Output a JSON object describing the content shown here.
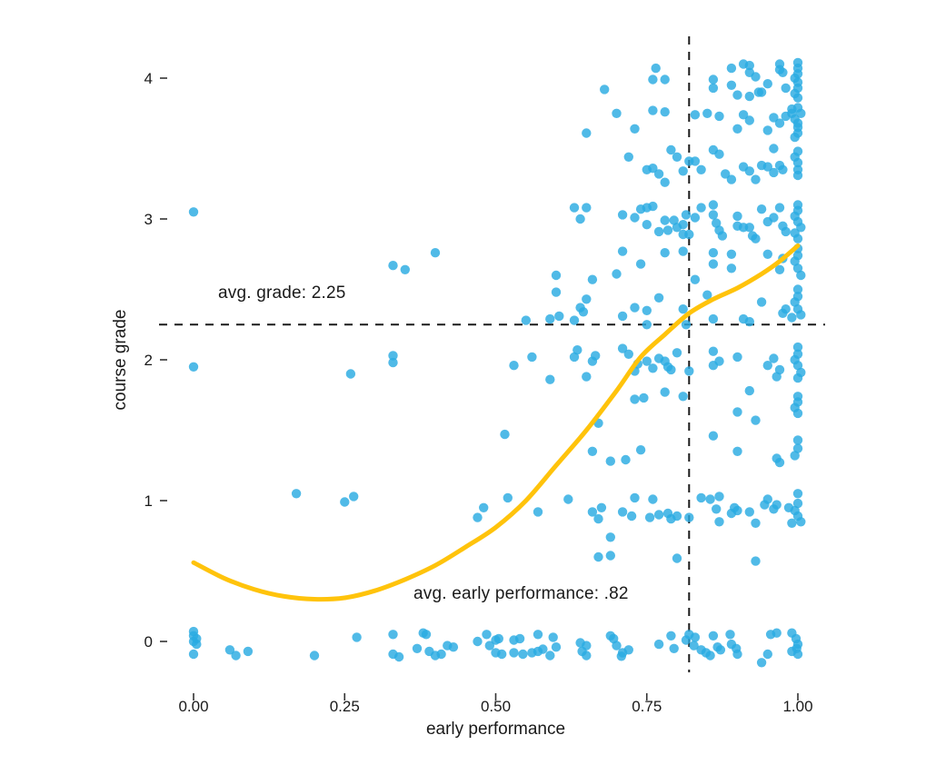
{
  "chart_data": {
    "type": "scatter",
    "title": "",
    "xlabel": "early performance",
    "ylabel": "course grade",
    "xlim": [
      -0.02,
      1.06
    ],
    "ylim": [
      -0.35,
      4.3
    ],
    "x_ticks": [
      0,
      0.25,
      0.5,
      0.75,
      1.0
    ],
    "x_tick_labels": [
      "0.00",
      "0.25",
      "0.50",
      "0.75",
      "1.00"
    ],
    "y_ticks": [
      0,
      1,
      2,
      3,
      4
    ],
    "y_tick_labels": [
      "0",
      "1",
      "2",
      "3",
      "4"
    ],
    "grid": false,
    "legend_position": "none",
    "point_color": "#29ABE2",
    "smooth_color": "#FFC30B",
    "reference_line_color": "#1a1a1a",
    "reference_lines": {
      "horizontal": {
        "y": 2.25,
        "style": "dashed"
      },
      "vertical": {
        "x": 0.82,
        "style": "dashed"
      }
    },
    "annotations": [
      {
        "text": "avg. grade: 2.25",
        "x": 0.04,
        "y": 2.43
      },
      {
        "text": "avg. early performance: .82",
        "x": 0.36,
        "y": 0.29
      }
    ],
    "smooth_curve": [
      [
        0.0,
        0.56
      ],
      [
        0.05,
        0.45
      ],
      [
        0.1,
        0.37
      ],
      [
        0.15,
        0.32
      ],
      [
        0.2,
        0.3
      ],
      [
        0.25,
        0.31
      ],
      [
        0.3,
        0.36
      ],
      [
        0.35,
        0.44
      ],
      [
        0.4,
        0.54
      ],
      [
        0.45,
        0.67
      ],
      [
        0.5,
        0.81
      ],
      [
        0.55,
        1.0
      ],
      [
        0.6,
        1.25
      ],
      [
        0.65,
        1.5
      ],
      [
        0.7,
        1.78
      ],
      [
        0.74,
        2.02
      ],
      [
        0.78,
        2.18
      ],
      [
        0.82,
        2.33
      ],
      [
        0.86,
        2.43
      ],
      [
        0.9,
        2.51
      ],
      [
        0.94,
        2.61
      ],
      [
        0.97,
        2.7
      ],
      [
        1.0,
        2.81
      ]
    ],
    "points": [
      [
        0.68,
        3.92
      ],
      [
        0.765,
        4.07
      ],
      [
        0.76,
        3.99
      ],
      [
        0.78,
        3.99
      ],
      [
        0.86,
        3.99
      ],
      [
        0.86,
        3.93
      ],
      [
        0.89,
        4.07
      ],
      [
        0.91,
        4.1
      ],
      [
        0.92,
        4.09
      ],
      [
        0.92,
        4.04
      ],
      [
        0.93,
        4.01
      ],
      [
        0.94,
        3.9
      ],
      [
        0.95,
        3.96
      ],
      [
        0.97,
        4.1
      ],
      [
        0.97,
        4.06
      ],
      [
        0.975,
        4.04
      ],
      [
        0.89,
        3.95
      ],
      [
        0.9,
        3.88
      ],
      [
        0.92,
        3.87
      ],
      [
        0.935,
        3.9
      ],
      [
        0.98,
        3.93
      ],
      [
        1.0,
        4.11
      ],
      [
        1.0,
        4.07
      ],
      [
        1.0,
        4.03
      ],
      [
        0.995,
        4.0
      ],
      [
        1.0,
        3.97
      ],
      [
        1.0,
        3.93
      ],
      [
        0.995,
        3.89
      ],
      [
        1.0,
        3.86
      ],
      [
        0.65,
        3.61
      ],
      [
        0.7,
        3.75
      ],
      [
        0.73,
        3.64
      ],
      [
        0.76,
        3.77
      ],
      [
        0.78,
        3.76
      ],
      [
        0.83,
        3.74
      ],
      [
        0.85,
        3.75
      ],
      [
        0.87,
        3.73
      ],
      [
        0.91,
        3.74
      ],
      [
        0.92,
        3.7
      ],
      [
        0.9,
        3.64
      ],
      [
        0.96,
        3.72
      ],
      [
        0.97,
        3.68
      ],
      [
        0.98,
        3.73
      ],
      [
        0.99,
        3.78
      ],
      [
        0.99,
        3.75
      ],
      [
        0.95,
        3.63
      ],
      [
        1.0,
        3.65
      ],
      [
        1.0,
        3.79
      ],
      [
        1.005,
        3.75
      ],
      [
        0.995,
        3.71
      ],
      [
        1.0,
        3.68
      ],
      [
        1.0,
        3.61
      ],
      [
        0.995,
        3.58
      ],
      [
        0.72,
        3.44
      ],
      [
        0.75,
        3.35
      ],
      [
        0.76,
        3.36
      ],
      [
        0.77,
        3.32
      ],
      [
        0.78,
        3.26
      ],
      [
        0.79,
        3.49
      ],
      [
        0.8,
        3.44
      ],
      [
        0.81,
        3.34
      ],
      [
        0.82,
        3.41
      ],
      [
        0.83,
        3.41
      ],
      [
        0.84,
        3.35
      ],
      [
        0.86,
        3.49
      ],
      [
        0.87,
        3.46
      ],
      [
        0.88,
        3.32
      ],
      [
        0.89,
        3.28
      ],
      [
        0.91,
        3.37
      ],
      [
        0.92,
        3.34
      ],
      [
        0.93,
        3.28
      ],
      [
        0.94,
        3.38
      ],
      [
        0.95,
        3.37
      ],
      [
        0.96,
        3.5
      ],
      [
        0.97,
        3.38
      ],
      [
        0.96,
        3.33
      ],
      [
        0.975,
        3.35
      ],
      [
        1.0,
        3.48
      ],
      [
        0.995,
        3.44
      ],
      [
        1.0,
        3.4
      ],
      [
        1.0,
        3.35
      ],
      [
        1.0,
        3.31
      ],
      [
        0.0,
        3.05
      ],
      [
        0.63,
        3.08
      ],
      [
        0.65,
        3.08
      ],
      [
        0.64,
        3.0
      ],
      [
        0.71,
        3.03
      ],
      [
        0.73,
        3.01
      ],
      [
        0.74,
        3.07
      ],
      [
        0.75,
        3.08
      ],
      [
        0.76,
        3.09
      ],
      [
        0.75,
        2.96
      ],
      [
        0.77,
        2.91
      ],
      [
        0.78,
        2.99
      ],
      [
        0.785,
        2.92
      ],
      [
        0.795,
        2.99
      ],
      [
        0.8,
        2.94
      ],
      [
        0.81,
        2.96
      ],
      [
        0.81,
        2.89
      ],
      [
        0.82,
        2.89
      ],
      [
        0.815,
        3.03
      ],
      [
        0.83,
        3.01
      ],
      [
        0.84,
        3.08
      ],
      [
        0.86,
        3.1
      ],
      [
        0.86,
        3.03
      ],
      [
        0.865,
        2.97
      ],
      [
        0.87,
        2.92
      ],
      [
        0.875,
        2.88
      ],
      [
        0.9,
        2.95
      ],
      [
        0.9,
        3.02
      ],
      [
        0.91,
        2.94
      ],
      [
        0.92,
        2.94
      ],
      [
        0.925,
        2.88
      ],
      [
        0.93,
        2.86
      ],
      [
        0.94,
        3.07
      ],
      [
        0.95,
        2.98
      ],
      [
        0.96,
        3.01
      ],
      [
        0.97,
        3.08
      ],
      [
        0.975,
        2.95
      ],
      [
        0.98,
        2.91
      ],
      [
        1.0,
        3.1
      ],
      [
        1.0,
        3.06
      ],
      [
        0.995,
        3.02
      ],
      [
        1.0,
        2.98
      ],
      [
        1.005,
        2.94
      ],
      [
        0.995,
        2.9
      ],
      [
        1.0,
        2.86
      ],
      [
        0.33,
        2.67
      ],
      [
        0.35,
        2.64
      ],
      [
        0.4,
        2.76
      ],
      [
        0.6,
        2.6
      ],
      [
        0.66,
        2.57
      ],
      [
        0.7,
        2.61
      ],
      [
        0.71,
        2.77
      ],
      [
        0.74,
        2.68
      ],
      [
        0.78,
        2.76
      ],
      [
        0.81,
        2.77
      ],
      [
        0.83,
        2.57
      ],
      [
        0.86,
        2.76
      ],
      [
        0.86,
        2.68
      ],
      [
        0.89,
        2.75
      ],
      [
        0.89,
        2.65
      ],
      [
        0.95,
        2.75
      ],
      [
        0.97,
        2.64
      ],
      [
        0.975,
        2.72
      ],
      [
        1.0,
        2.79
      ],
      [
        1.0,
        2.74
      ],
      [
        0.995,
        2.7
      ],
      [
        1.0,
        2.65
      ],
      [
        1.005,
        2.6
      ],
      [
        0.55,
        2.28
      ],
      [
        0.59,
        2.29
      ],
      [
        0.605,
        2.31
      ],
      [
        0.6,
        2.48
      ],
      [
        0.63,
        2.28
      ],
      [
        0.64,
        2.37
      ],
      [
        0.645,
        2.34
      ],
      [
        0.65,
        2.43
      ],
      [
        0.71,
        2.31
      ],
      [
        0.73,
        2.37
      ],
      [
        0.75,
        2.35
      ],
      [
        0.75,
        2.25
      ],
      [
        0.77,
        2.44
      ],
      [
        0.81,
        2.36
      ],
      [
        0.815,
        2.25
      ],
      [
        0.85,
        2.46
      ],
      [
        0.86,
        2.29
      ],
      [
        0.91,
        2.29
      ],
      [
        0.92,
        2.27
      ],
      [
        0.94,
        2.41
      ],
      [
        0.975,
        2.33
      ],
      [
        0.98,
        2.36
      ],
      [
        0.99,
        2.3
      ],
      [
        1.0,
        2.5
      ],
      [
        1.0,
        2.45
      ],
      [
        0.995,
        2.41
      ],
      [
        1.0,
        2.36
      ],
      [
        1.005,
        2.32
      ],
      [
        0.0,
        1.95
      ],
      [
        0.26,
        1.9
      ],
      [
        0.33,
        2.03
      ],
      [
        0.33,
        1.98
      ],
      [
        0.53,
        1.96
      ],
      [
        0.56,
        2.02
      ],
      [
        0.59,
        1.86
      ],
      [
        0.63,
        2.02
      ],
      [
        0.635,
        2.07
      ],
      [
        0.65,
        1.88
      ],
      [
        0.66,
        1.99
      ],
      [
        0.665,
        2.03
      ],
      [
        0.71,
        2.08
      ],
      [
        0.72,
        2.04
      ],
      [
        0.73,
        1.92
      ],
      [
        0.735,
        1.97
      ],
      [
        0.75,
        1.99
      ],
      [
        0.76,
        1.94
      ],
      [
        0.77,
        2.01
      ],
      [
        0.78,
        1.99
      ],
      [
        0.785,
        1.95
      ],
      [
        0.79,
        1.93
      ],
      [
        0.8,
        2.05
      ],
      [
        0.82,
        1.92
      ],
      [
        0.86,
        2.06
      ],
      [
        0.86,
        1.96
      ],
      [
        0.87,
        1.99
      ],
      [
        0.9,
        2.02
      ],
      [
        0.95,
        1.96
      ],
      [
        0.96,
        2.01
      ],
      [
        0.965,
        1.88
      ],
      [
        0.97,
        1.93
      ],
      [
        1.0,
        2.09
      ],
      [
        1.0,
        2.04
      ],
      [
        0.995,
        2.0
      ],
      [
        1.0,
        1.96
      ],
      [
        1.005,
        1.91
      ],
      [
        1.0,
        1.87
      ],
      [
        0.67,
        1.55
      ],
      [
        0.73,
        1.72
      ],
      [
        0.745,
        1.73
      ],
      [
        0.78,
        1.77
      ],
      [
        0.81,
        1.74
      ],
      [
        0.9,
        1.63
      ],
      [
        0.92,
        1.78
      ],
      [
        0.93,
        1.57
      ],
      [
        1.0,
        1.74
      ],
      [
        1.0,
        1.7
      ],
      [
        0.995,
        1.66
      ],
      [
        1.0,
        1.62
      ],
      [
        0.515,
        1.47
      ],
      [
        0.66,
        1.35
      ],
      [
        0.69,
        1.28
      ],
      [
        0.715,
        1.29
      ],
      [
        0.74,
        1.36
      ],
      [
        0.86,
        1.46
      ],
      [
        0.9,
        1.35
      ],
      [
        0.965,
        1.3
      ],
      [
        0.97,
        1.27
      ],
      [
        1.0,
        1.43
      ],
      [
        1.0,
        1.37
      ],
      [
        0.995,
        1.32
      ],
      [
        0.17,
        1.05
      ],
      [
        0.25,
        0.99
      ],
      [
        0.265,
        1.03
      ],
      [
        0.47,
        0.88
      ],
      [
        0.48,
        0.95
      ],
      [
        0.52,
        1.02
      ],
      [
        0.57,
        0.92
      ],
      [
        0.62,
        1.01
      ],
      [
        0.66,
        0.92
      ],
      [
        0.67,
        0.87
      ],
      [
        0.675,
        0.95
      ],
      [
        0.71,
        0.92
      ],
      [
        0.725,
        0.89
      ],
      [
        0.73,
        1.02
      ],
      [
        0.76,
        1.01
      ],
      [
        0.755,
        0.88
      ],
      [
        0.77,
        0.9
      ],
      [
        0.785,
        0.91
      ],
      [
        0.79,
        0.87
      ],
      [
        0.8,
        0.89
      ],
      [
        0.82,
        0.88
      ],
      [
        0.84,
        1.02
      ],
      [
        0.855,
        1.01
      ],
      [
        0.87,
        1.03
      ],
      [
        0.865,
        0.94
      ],
      [
        0.87,
        0.85
      ],
      [
        0.89,
        0.91
      ],
      [
        0.895,
        0.95
      ],
      [
        0.9,
        0.93
      ],
      [
        0.92,
        0.92
      ],
      [
        0.93,
        0.84
      ],
      [
        0.945,
        0.97
      ],
      [
        0.95,
        1.01
      ],
      [
        0.96,
        0.94
      ],
      [
        0.965,
        0.97
      ],
      [
        0.985,
        0.95
      ],
      [
        0.99,
        0.84
      ],
      [
        1.0,
        1.05
      ],
      [
        1.0,
        0.98
      ],
      [
        0.995,
        0.93
      ],
      [
        1.0,
        0.89
      ],
      [
        1.005,
        0.85
      ],
      [
        0.67,
        0.6
      ],
      [
        0.69,
        0.61
      ],
      [
        0.69,
        0.74
      ],
      [
        0.8,
        0.59
      ],
      [
        0.93,
        0.57
      ],
      [
        0.0,
        0.07
      ],
      [
        0.0,
        0.04
      ],
      [
        0.005,
        0.02
      ],
      [
        0.0,
        0.0
      ],
      [
        0.005,
        -0.02
      ],
      [
        0.0,
        -0.09
      ],
      [
        0.06,
        -0.06
      ],
      [
        0.07,
        -0.1
      ],
      [
        0.09,
        -0.07
      ],
      [
        0.2,
        -0.1
      ],
      [
        0.27,
        0.03
      ],
      [
        0.33,
        0.05
      ],
      [
        0.33,
        -0.09
      ],
      [
        0.34,
        -0.11
      ],
      [
        0.37,
        -0.05
      ],
      [
        0.38,
        0.06
      ],
      [
        0.385,
        0.05
      ],
      [
        0.39,
        -0.07
      ],
      [
        0.4,
        -0.1
      ],
      [
        0.41,
        -0.09
      ],
      [
        0.42,
        -0.03
      ],
      [
        0.43,
        -0.04
      ],
      [
        0.47,
        0.0
      ],
      [
        0.485,
        0.05
      ],
      [
        0.49,
        -0.03
      ],
      [
        0.5,
        0.01
      ],
      [
        0.5,
        -0.08
      ],
      [
        0.505,
        0.02
      ],
      [
        0.51,
        -0.09
      ],
      [
        0.53,
        0.01
      ],
      [
        0.54,
        0.02
      ],
      [
        0.53,
        -0.08
      ],
      [
        0.545,
        -0.09
      ],
      [
        0.56,
        -0.08
      ],
      [
        0.57,
        0.05
      ],
      [
        0.57,
        -0.07
      ],
      [
        0.578,
        -0.055
      ],
      [
        0.595,
        0.03
      ],
      [
        0.6,
        -0.04
      ],
      [
        0.59,
        -0.1
      ],
      [
        0.64,
        -0.01
      ],
      [
        0.65,
        -0.03
      ],
      [
        0.643,
        -0.07
      ],
      [
        0.65,
        -0.1
      ],
      [
        0.69,
        0.04
      ],
      [
        0.695,
        0.02
      ],
      [
        0.7,
        -0.03
      ],
      [
        0.71,
        -0.08
      ],
      [
        0.708,
        -0.105
      ],
      [
        0.72,
        -0.06
      ],
      [
        0.77,
        -0.02
      ],
      [
        0.79,
        0.04
      ],
      [
        0.795,
        -0.05
      ],
      [
        0.815,
        0.01
      ],
      [
        0.82,
        0.05
      ],
      [
        0.83,
        0.03
      ],
      [
        0.828,
        -0.03
      ],
      [
        0.84,
        -0.06
      ],
      [
        0.848,
        -0.08
      ],
      [
        0.855,
        -0.1
      ],
      [
        0.86,
        0.04
      ],
      [
        0.867,
        -0.04
      ],
      [
        0.872,
        -0.06
      ],
      [
        0.888,
        0.05
      ],
      [
        0.89,
        -0.02
      ],
      [
        0.898,
        -0.05
      ],
      [
        0.9,
        -0.09
      ],
      [
        0.94,
        -0.15
      ],
      [
        0.95,
        -0.09
      ],
      [
        0.955,
        0.05
      ],
      [
        0.965,
        0.06
      ],
      [
        0.99,
        0.06
      ],
      [
        0.997,
        0.02
      ],
      [
        1.0,
        -0.02
      ],
      [
        0.998,
        -0.05
      ],
      [
        1.0,
        -0.09
      ],
      [
        0.99,
        -0.07
      ]
    ]
  }
}
